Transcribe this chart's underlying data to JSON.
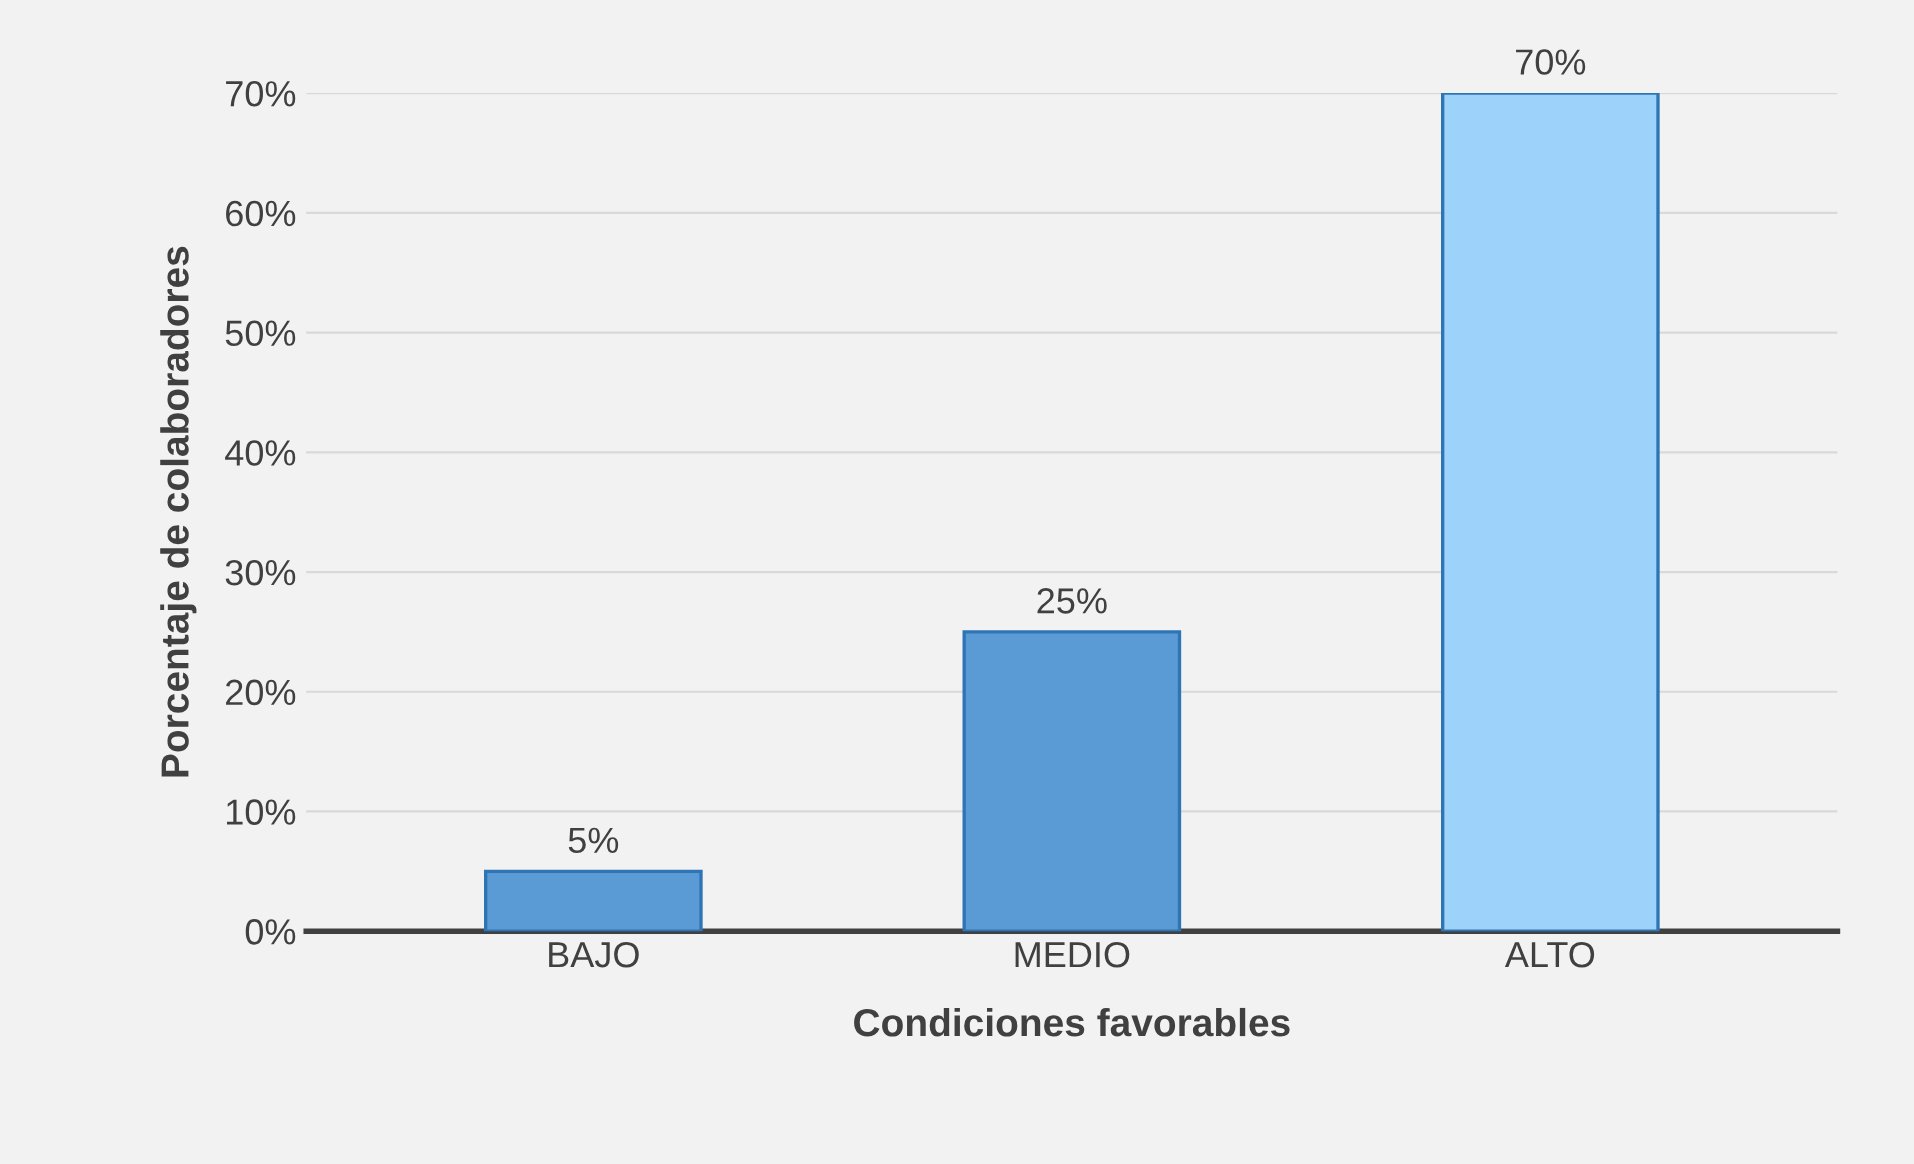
{
  "chart_data": {
    "type": "bar",
    "xlabel": "Condiciones favorables",
    "ylabel": "Porcentaje de colaboradores",
    "categories": [
      "BAJO",
      "MEDIO",
      "ALTO"
    ],
    "values": [
      5,
      25,
      70
    ],
    "colors": [
      "#5b9bd5",
      "#5b9bd5",
      "#9dd3fb"
    ],
    "value_labels": [
      "5%",
      "25%",
      "70%"
    ],
    "ylim": [
      0,
      70
    ],
    "yticks": [
      {
        "value": 0,
        "label": "0%"
      },
      {
        "value": 10,
        "label": "10%"
      },
      {
        "value": 20,
        "label": "20%"
      },
      {
        "value": 30,
        "label": "30%"
      },
      {
        "value": 40,
        "label": "40%"
      },
      {
        "value": 50,
        "label": "50%"
      },
      {
        "value": 60,
        "label": "60%"
      },
      {
        "value": 70,
        "label": "70%"
      }
    ],
    "grid": "y",
    "legend": false
  }
}
